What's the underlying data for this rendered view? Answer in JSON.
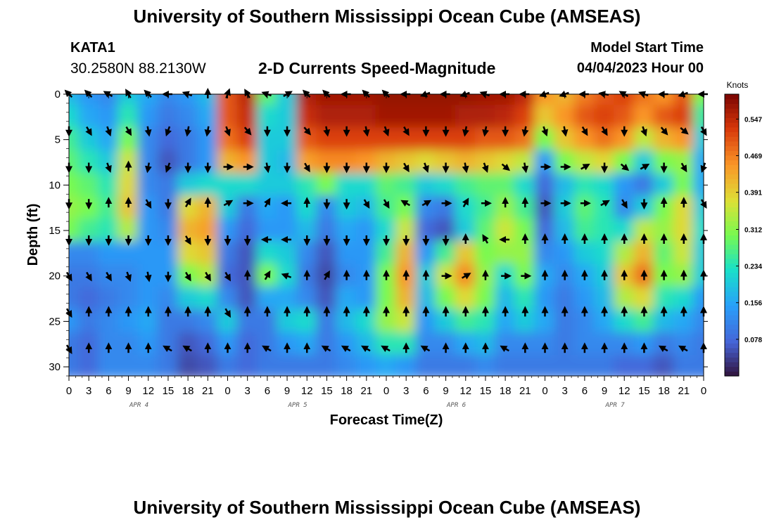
{
  "header": {
    "title": "University of Southern Mississippi Ocean Cube (AMSEAS)",
    "station": "KATA1",
    "coords": "30.2580N  88.2130W",
    "subtitle": "2-D Currents Speed-Magnitude",
    "model_start_label": "Model Start Time",
    "model_start_value": "04/04/2023 Hour 00"
  },
  "footer": {
    "title": "University of Southern Mississippi Ocean Cube (AMSEAS)"
  },
  "chart_data": {
    "type": "heatmap",
    "title": "2-D Currents Speed-Magnitude",
    "xlabel": "Forecast Time(Z)",
    "ylabel": "Depth (ft)",
    "x_range_hours": [
      0,
      96
    ],
    "ylim": [
      0,
      31
    ],
    "x_tick_labels": [
      "0",
      "3",
      "6",
      "9",
      "12",
      "15",
      "18",
      "21",
      "0",
      "3",
      "6",
      "9",
      "12",
      "15",
      "18",
      "21",
      "0",
      "3",
      "6",
      "9",
      "12",
      "15",
      "18",
      "21",
      "0",
      "3",
      "6",
      "9",
      "12",
      "15",
      "18",
      "21",
      "0"
    ],
    "x_tick_hours": [
      0,
      3,
      6,
      9,
      12,
      15,
      18,
      21,
      24,
      27,
      30,
      33,
      36,
      39,
      42,
      45,
      48,
      51,
      54,
      57,
      60,
      63,
      66,
      69,
      72,
      75,
      78,
      81,
      84,
      87,
      90,
      93,
      96
    ],
    "date_labels": [
      {
        "label": "APR 4",
        "hour": 9
      },
      {
        "label": "APR 5",
        "hour": 33
      },
      {
        "label": "APR 6",
        "hour": 57
      },
      {
        "label": "APR 7",
        "hour": 81
      }
    ],
    "y_ticks": [
      0,
      5,
      10,
      15,
      20,
      25,
      30
    ],
    "colorbar": {
      "unit": "Knots",
      "min": 0,
      "max": 0.6,
      "tick_values": [
        0.547,
        0.469,
        0.391,
        0.312,
        0.234,
        0.156,
        0.078
      ],
      "tick_labels": [
        "0.547",
        "0.469",
        "0.391",
        "0.312",
        "0.234",
        "0.156",
        "0.078"
      ]
    },
    "arrow_depths_ft": [
      0,
      4,
      8,
      12,
      16,
      20,
      24,
      28
    ],
    "arrow_hours": [
      0,
      3,
      6,
      9,
      12,
      15,
      18,
      21,
      24,
      27,
      30,
      33,
      36,
      39,
      42,
      45,
      48,
      51,
      54,
      57,
      60,
      63,
      66,
      69,
      72,
      75,
      78,
      81,
      84,
      87,
      90,
      93,
      96
    ],
    "grid_depths_ft": [
      0,
      2.5,
      5,
      7.5,
      10,
      12.5,
      15,
      17.5,
      20,
      22.5,
      25,
      27.5,
      30
    ],
    "grid_hours": [
      0,
      3,
      6,
      9,
      12,
      15,
      18,
      21,
      24,
      27,
      30,
      33,
      36,
      39,
      42,
      45,
      48,
      51,
      54,
      57,
      60,
      63,
      66,
      69,
      72,
      75,
      78,
      81,
      84,
      87,
      90,
      93,
      96
    ],
    "speed_knots": [
      [
        0.18,
        0.14,
        0.12,
        0.2,
        0.16,
        0.12,
        0.14,
        0.18,
        0.5,
        0.55,
        0.28,
        0.2,
        0.56,
        0.57,
        0.57,
        0.57,
        0.58,
        0.58,
        0.58,
        0.58,
        0.58,
        0.57,
        0.57,
        0.55,
        0.45,
        0.42,
        0.47,
        0.5,
        0.52,
        0.48,
        0.45,
        0.5,
        0.3
      ],
      [
        0.22,
        0.16,
        0.14,
        0.24,
        0.14,
        0.1,
        0.12,
        0.16,
        0.5,
        0.54,
        0.22,
        0.2,
        0.54,
        0.56,
        0.56,
        0.56,
        0.57,
        0.57,
        0.57,
        0.57,
        0.56,
        0.56,
        0.55,
        0.52,
        0.4,
        0.45,
        0.5,
        0.52,
        0.5,
        0.45,
        0.5,
        0.52,
        0.25
      ],
      [
        0.26,
        0.2,
        0.16,
        0.3,
        0.12,
        0.08,
        0.1,
        0.14,
        0.48,
        0.52,
        0.2,
        0.2,
        0.5,
        0.52,
        0.52,
        0.52,
        0.52,
        0.52,
        0.52,
        0.52,
        0.52,
        0.5,
        0.5,
        0.48,
        0.3,
        0.4,
        0.45,
        0.48,
        0.45,
        0.35,
        0.42,
        0.45,
        0.2
      ],
      [
        0.28,
        0.24,
        0.2,
        0.36,
        0.12,
        0.06,
        0.1,
        0.14,
        0.42,
        0.45,
        0.2,
        0.18,
        0.44,
        0.46,
        0.46,
        0.45,
        0.42,
        0.4,
        0.38,
        0.4,
        0.42,
        0.4,
        0.38,
        0.35,
        0.14,
        0.3,
        0.35,
        0.38,
        0.3,
        0.2,
        0.3,
        0.32,
        0.16
      ],
      [
        0.3,
        0.28,
        0.24,
        0.38,
        0.12,
        0.1,
        0.2,
        0.22,
        0.22,
        0.22,
        0.2,
        0.2,
        0.24,
        0.3,
        0.22,
        0.22,
        0.28,
        0.26,
        0.2,
        0.22,
        0.26,
        0.28,
        0.28,
        0.22,
        0.08,
        0.18,
        0.24,
        0.22,
        0.14,
        0.1,
        0.2,
        0.3,
        0.16
      ],
      [
        0.32,
        0.3,
        0.26,
        0.4,
        0.14,
        0.1,
        0.38,
        0.42,
        0.2,
        0.1,
        0.16,
        0.14,
        0.22,
        0.12,
        0.2,
        0.18,
        0.26,
        0.3,
        0.12,
        0.1,
        0.22,
        0.26,
        0.32,
        0.26,
        0.06,
        0.2,
        0.28,
        0.24,
        0.12,
        0.2,
        0.3,
        0.38,
        0.2
      ],
      [
        0.3,
        0.26,
        0.24,
        0.34,
        0.14,
        0.12,
        0.42,
        0.44,
        0.14,
        0.08,
        0.14,
        0.14,
        0.18,
        0.1,
        0.16,
        0.14,
        0.22,
        0.36,
        0.08,
        0.06,
        0.2,
        0.28,
        0.36,
        0.3,
        0.08,
        0.18,
        0.26,
        0.24,
        0.22,
        0.35,
        0.32,
        0.38,
        0.22
      ],
      [
        0.12,
        0.12,
        0.14,
        0.14,
        0.14,
        0.14,
        0.38,
        0.4,
        0.1,
        0.06,
        0.22,
        0.2,
        0.12,
        0.06,
        0.14,
        0.14,
        0.26,
        0.42,
        0.14,
        0.26,
        0.4,
        0.3,
        0.32,
        0.32,
        0.12,
        0.14,
        0.2,
        0.22,
        0.34,
        0.42,
        0.28,
        0.36,
        0.2
      ],
      [
        0.1,
        0.1,
        0.12,
        0.12,
        0.14,
        0.14,
        0.3,
        0.34,
        0.08,
        0.06,
        0.3,
        0.22,
        0.1,
        0.05,
        0.12,
        0.14,
        0.3,
        0.45,
        0.2,
        0.36,
        0.46,
        0.32,
        0.22,
        0.3,
        0.16,
        0.12,
        0.16,
        0.2,
        0.4,
        0.48,
        0.3,
        0.32,
        0.2
      ],
      [
        0.1,
        0.08,
        0.1,
        0.12,
        0.14,
        0.12,
        0.2,
        0.22,
        0.12,
        0.06,
        0.16,
        0.16,
        0.12,
        0.06,
        0.16,
        0.14,
        0.3,
        0.42,
        0.18,
        0.3,
        0.38,
        0.3,
        0.18,
        0.24,
        0.14,
        0.1,
        0.14,
        0.18,
        0.34,
        0.38,
        0.24,
        0.22,
        0.14
      ],
      [
        0.14,
        0.1,
        0.12,
        0.14,
        0.16,
        0.1,
        0.1,
        0.12,
        0.2,
        0.1,
        0.1,
        0.2,
        0.22,
        0.1,
        0.18,
        0.22,
        0.32,
        0.36,
        0.14,
        0.2,
        0.26,
        0.24,
        0.16,
        0.2,
        0.16,
        0.1,
        0.12,
        0.16,
        0.22,
        0.26,
        0.18,
        0.16,
        0.12
      ],
      [
        0.1,
        0.08,
        0.12,
        0.12,
        0.14,
        0.1,
        0.06,
        0.08,
        0.14,
        0.08,
        0.1,
        0.14,
        0.16,
        0.1,
        0.14,
        0.18,
        0.24,
        0.24,
        0.12,
        0.12,
        0.16,
        0.18,
        0.12,
        0.12,
        0.12,
        0.1,
        0.12,
        0.12,
        0.12,
        0.14,
        0.1,
        0.12,
        0.1
      ],
      [
        0.1,
        0.08,
        0.12,
        0.12,
        0.12,
        0.1,
        0.05,
        0.06,
        0.1,
        0.08,
        0.1,
        0.1,
        0.1,
        0.1,
        0.12,
        0.14,
        0.16,
        0.14,
        0.1,
        0.1,
        0.1,
        0.12,
        0.1,
        0.1,
        0.1,
        0.1,
        0.1,
        0.1,
        0.08,
        0.08,
        0.06,
        0.1,
        0.1
      ]
    ],
    "arrow_angles_deg": [
      [
        135,
        135,
        150,
        120,
        135,
        180,
        160,
        90,
        70,
        120,
        160,
        30,
        135,
        135,
        180,
        135,
        135,
        180,
        200,
        180,
        200,
        160,
        180,
        180,
        200,
        200,
        180,
        170,
        150,
        160,
        180,
        200,
        180
      ],
      [
        270,
        300,
        290,
        300,
        280,
        250,
        260,
        260,
        290,
        310,
        270,
        270,
        310,
        280,
        270,
        280,
        290,
        300,
        270,
        270,
        260,
        260,
        270,
        260,
        290,
        280,
        300,
        300,
        270,
        290,
        310,
        320,
        300
      ],
      [
        270,
        270,
        290,
        90,
        260,
        250,
        270,
        270,
        0,
        0,
        280,
        270,
        300,
        270,
        270,
        270,
        270,
        300,
        290,
        270,
        280,
        290,
        320,
        280,
        0,
        0,
        30,
        270,
        320,
        30,
        270,
        300,
        250
      ],
      [
        270,
        270,
        90,
        90,
        300,
        270,
        60,
        90,
        30,
        0,
        60,
        180,
        90,
        270,
        270,
        300,
        300,
        150,
        30,
        0,
        60,
        0,
        90,
        90,
        0,
        0,
        0,
        30,
        300,
        270,
        90,
        90,
        300
      ],
      [
        270,
        270,
        270,
        270,
        270,
        270,
        300,
        270,
        270,
        270,
        180,
        180,
        270,
        270,
        270,
        270,
        270,
        270,
        270,
        270,
        90,
        120,
        180,
        90,
        90,
        90,
        90,
        90,
        90,
        90,
        90,
        90,
        90
      ],
      [
        300,
        300,
        300,
        290,
        280,
        270,
        300,
        300,
        300,
        90,
        60,
        160,
        90,
        60,
        90,
        90,
        90,
        90,
        90,
        0,
        30,
        90,
        0,
        0,
        90,
        90,
        90,
        90,
        90,
        90,
        90,
        90,
        90
      ],
      [
        300,
        90,
        90,
        90,
        90,
        90,
        90,
        90,
        300,
        90,
        90,
        90,
        90,
        90,
        90,
        90,
        90,
        90,
        90,
        90,
        90,
        90,
        90,
        90,
        90,
        90,
        90,
        90,
        90,
        90,
        90,
        90,
        90
      ],
      [
        300,
        90,
        90,
        90,
        90,
        150,
        150,
        90,
        90,
        90,
        150,
        90,
        90,
        150,
        150,
        150,
        150,
        90,
        150,
        90,
        90,
        90,
        150,
        90,
        90,
        90,
        90,
        90,
        90,
        90,
        150,
        150,
        90
      ]
    ]
  }
}
